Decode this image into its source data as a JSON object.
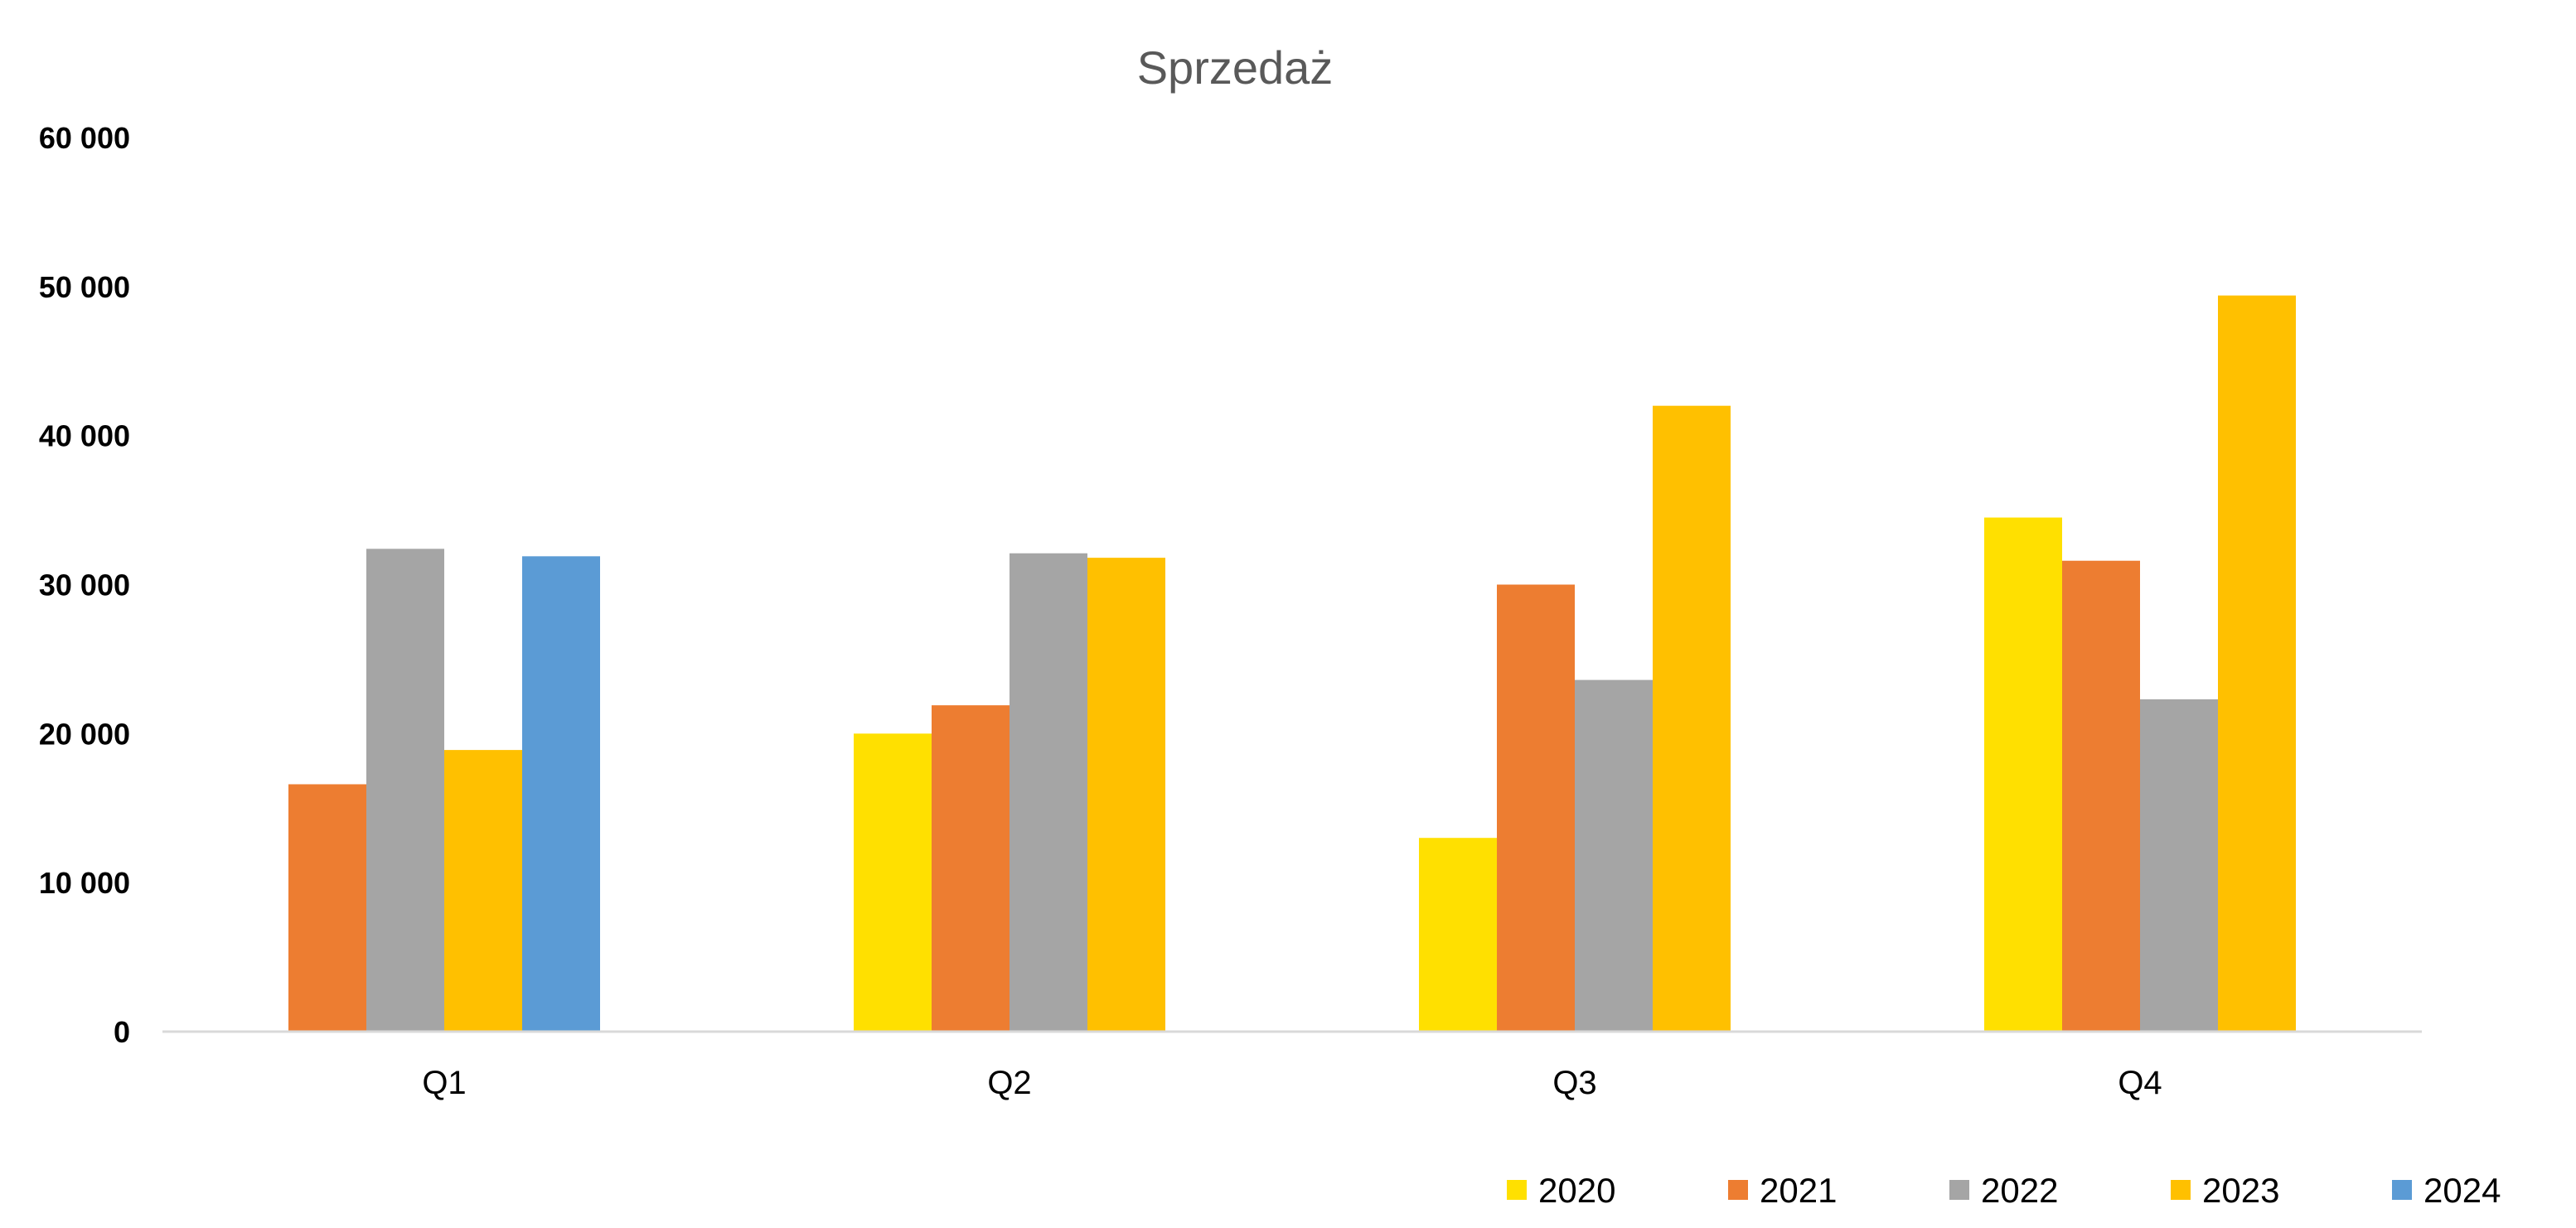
{
  "chart_data": {
    "type": "bar",
    "title": "Sprzedaż",
    "xlabel": "",
    "ylabel": "",
    "categories": [
      "Q1",
      "Q2",
      "Q3",
      "Q4"
    ],
    "ylim": [
      0,
      60000
    ],
    "yticks": [
      0,
      10000,
      20000,
      30000,
      40000,
      50000,
      60000
    ],
    "ytick_labels": [
      "0",
      "10 000",
      "20 000",
      "30 000",
      "40 000",
      "50 000",
      "60 000"
    ],
    "grid": false,
    "legend_position": "bottom-right",
    "series": [
      {
        "name": "2020",
        "color": "#FFE000",
        "values": [
          null,
          20000,
          13000,
          34500
        ]
      },
      {
        "name": "2021",
        "color": "#ED7D31",
        "values": [
          16600,
          21900,
          30000,
          31600
        ]
      },
      {
        "name": "2022",
        "color": "#A5A5A5",
        "values": [
          32400,
          32100,
          23600,
          22300
        ]
      },
      {
        "name": "2023",
        "color": "#FFC000",
        "values": [
          18900,
          31800,
          42000,
          49400
        ]
      },
      {
        "name": "2024",
        "color": "#5B9BD5",
        "values": [
          31900,
          null,
          null,
          null
        ]
      }
    ]
  }
}
